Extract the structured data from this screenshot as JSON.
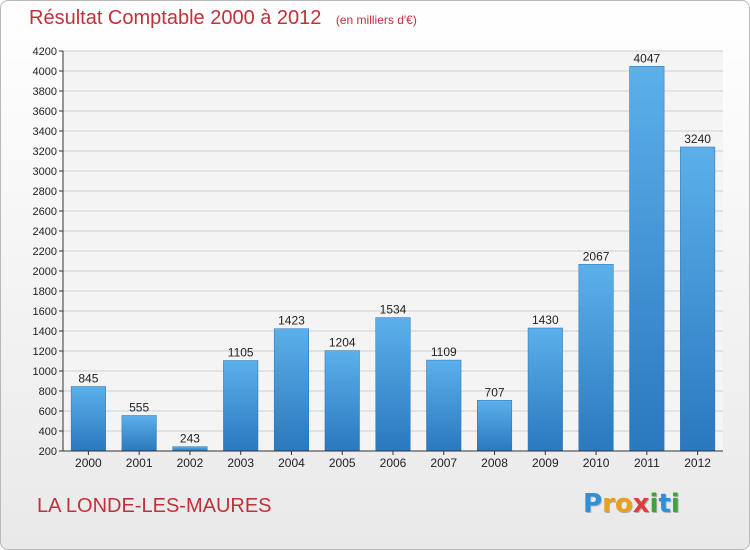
{
  "chart_data": {
    "type": "bar",
    "title": "Résultat Comptable 2000 à 2012",
    "subtitle": "(en milliers d'€)",
    "categories": [
      "2000",
      "2001",
      "2002",
      "2003",
      "2004",
      "2005",
      "2006",
      "2007",
      "2008",
      "2009",
      "2010",
      "2011",
      "2012"
    ],
    "values": [
      845,
      555,
      243,
      1105,
      1423,
      1204,
      1534,
      1109,
      707,
      1430,
      2067,
      4047,
      3240
    ],
    "ylim": [
      200,
      4200
    ],
    "yticks": [
      200,
      400,
      600,
      800,
      1000,
      1200,
      1400,
      1600,
      1800,
      2000,
      2200,
      2400,
      2600,
      2800,
      3000,
      3200,
      3400,
      3600,
      3800,
      4000,
      4200
    ],
    "grid": true,
    "bar_color": "#3a8fd6",
    "legend": "none"
  },
  "footer": {
    "commune": "LA LONDE-LES-MAURES",
    "brand_letters": [
      {
        "char": "P",
        "color": "#2f8fd8"
      },
      {
        "char": "r",
        "color": "#e8a11c"
      },
      {
        "char": "o",
        "color": "#e8a11c"
      },
      {
        "char": "x",
        "color": "#e23b3b"
      },
      {
        "char": "i",
        "color": "#3aa63a"
      },
      {
        "char": "t",
        "color": "#2f8fd8"
      },
      {
        "char": "i",
        "color": "#3aa63a"
      }
    ]
  },
  "colors": {
    "title": "#c0313a",
    "axis": "#333333",
    "grid": "#d0d0d0"
  }
}
